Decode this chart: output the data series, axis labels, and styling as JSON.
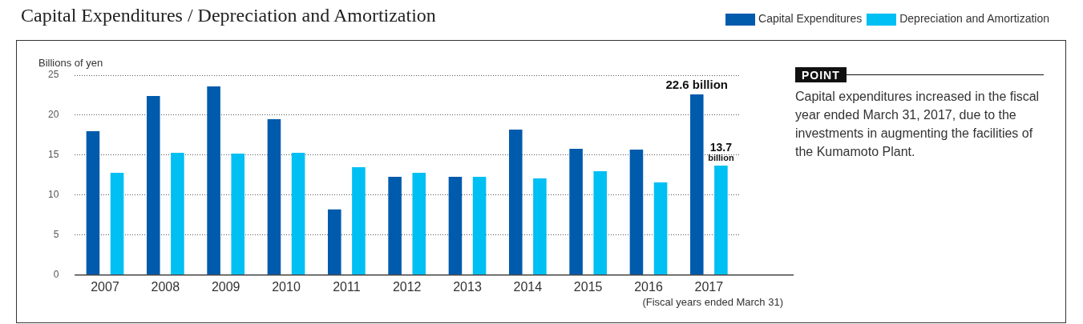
{
  "chart_data": {
    "type": "bar",
    "title": "Capital Expenditures / Depreciation and Amortization",
    "ylabel": "Billions of yen",
    "xlabel": "(Fiscal years ended March 31)",
    "categories": [
      "2007",
      "2008",
      "2009",
      "2010",
      "2011",
      "2012",
      "2013",
      "2014",
      "2015",
      "2016",
      "2017"
    ],
    "series": [
      {
        "name": "Capital Expenditures",
        "color": "#005bac",
        "values": [
          18.0,
          22.4,
          23.6,
          19.5,
          8.2,
          12.3,
          12.3,
          18.2,
          15.8,
          15.7,
          22.6
        ],
        "value_labels": [
          null,
          null,
          null,
          null,
          null,
          null,
          null,
          null,
          null,
          null,
          "22.6 billion"
        ]
      },
      {
        "name": "Depreciation and Amortization",
        "color": "#00bff3",
        "values": [
          12.8,
          15.3,
          15.2,
          15.3,
          13.5,
          12.8,
          12.3,
          12.1,
          13.0,
          11.6,
          13.7
        ],
        "value_labels": [
          null,
          null,
          null,
          null,
          null,
          null,
          null,
          null,
          null,
          null,
          "13.7 billion"
        ]
      }
    ],
    "ylim": [
      0,
      25
    ],
    "yticks": [
      0,
      5,
      10,
      15,
      20,
      25
    ],
    "grid": "y",
    "legend": "top right",
    "annotations": [
      "POINT",
      "Capital expenditures increased in the fiscal year ended March 31, 2017, due to the investments in augmenting the facilities of the Kumamoto Plant."
    ]
  }
}
